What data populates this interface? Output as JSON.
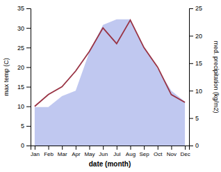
{
  "chart_data": {
    "type": "line",
    "categories": [
      "Jan",
      "Feb",
      "Mar",
      "Apr",
      "May",
      "Jun",
      "Jul",
      "Aug",
      "Sep",
      "Oct",
      "Nov",
      "Dec"
    ],
    "series": [
      {
        "type": "area",
        "axis": "y2",
        "color": "#c0c8f0",
        "values": [
          7,
          7,
          9,
          10,
          17,
          22,
          23,
          23,
          18,
          14,
          10,
          8
        ]
      },
      {
        "type": "line",
        "color": "#993344",
        "values": [
          10,
          13,
          15,
          19,
          24,
          30,
          26,
          32,
          25,
          20,
          13,
          11
        ]
      }
    ],
    "xlabel": "date (month)",
    "ylabel": "max temp (C)",
    "y2label": "med. precipitation (kg/m2)",
    "ylim": [
      0,
      35
    ],
    "yticks": [
      0,
      5,
      10,
      15,
      20,
      25,
      30,
      35
    ],
    "y2lim": [
      0,
      25
    ],
    "y2ticks": [
      0,
      5,
      10,
      15,
      20,
      25
    ],
    "grid": false
  }
}
